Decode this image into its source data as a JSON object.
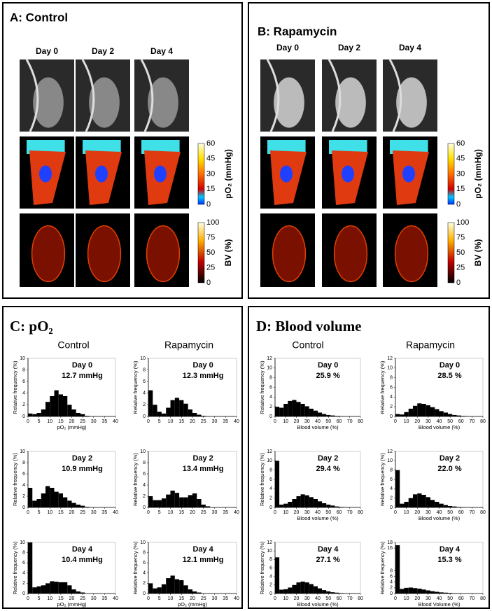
{
  "panels": [
    {
      "title": "A: Control",
      "days": [
        "Day 0",
        "Day 2",
        "Day 4"
      ],
      "colorbars": [
        {
          "label": "pO₂ (mmHg)",
          "ticks": [
            60,
            45,
            30,
            15,
            0
          ]
        },
        {
          "label": "BV (%)",
          "ticks": [
            100,
            75,
            50,
            25,
            0
          ]
        }
      ]
    },
    {
      "title": "B: Rapamycin",
      "days": [
        "Day 0",
        "Day 2",
        "Day 4"
      ],
      "colorbars": [
        {
          "label": "pO₂ (mmHg)",
          "ticks": [
            60,
            45,
            30,
            15,
            0
          ]
        },
        {
          "label": "BV (%)",
          "ticks": [
            100,
            75,
            50,
            25,
            0
          ]
        }
      ]
    },
    {
      "title": "C: pO₂",
      "columns": [
        "Control",
        "Rapamycin"
      ]
    },
    {
      "title": "D: Blood volume",
      "columns": [
        "Control",
        "Rapamycin"
      ]
    }
  ],
  "chart_data": [
    {
      "type": "histogram",
      "day": "Day 0",
      "mean": "12.7 mmHg",
      "ylabel": "Relative frequency (%)",
      "xlabel": "pO₂ (mmHg)",
      "color": "#000000",
      "bins": [
        0,
        2,
        4,
        6,
        8,
        10,
        12,
        14,
        16,
        18,
        20,
        22,
        24,
        26,
        28,
        30,
        32,
        34,
        36,
        38,
        40
      ],
      "values": [
        0.5,
        0.4,
        0.6,
        1.2,
        2.5,
        3.5,
        4.5,
        3.8,
        3.5,
        2,
        1.2,
        0.6,
        0.4,
        0.1,
        0,
        0,
        0,
        0,
        0,
        0
      ],
      "xlim": [
        0,
        40
      ],
      "xticks": [
        0,
        5,
        10,
        15,
        20,
        25,
        30,
        35,
        40
      ],
      "ylim": [
        0,
        10
      ],
      "yticks": [
        0,
        2,
        4,
        6,
        8,
        10
      ]
    },
    {
      "type": "histogram",
      "day": "Day 0",
      "mean": "12.3 mmHg",
      "ylabel": "Relative frequency (%)",
      "color": "#000000",
      "bins": [
        0,
        2,
        4,
        6,
        8,
        10,
        12,
        14,
        16,
        18,
        20,
        22,
        24,
        26,
        28,
        30,
        32,
        34,
        36,
        38,
        40
      ],
      "values": [
        4.5,
        2,
        0.8,
        0.5,
        1.5,
        2.8,
        3.2,
        2.8,
        2.2,
        1.2,
        0.6,
        0.3,
        0.1,
        0,
        0,
        0,
        0,
        0,
        0,
        0
      ],
      "xlim": [
        0,
        40
      ],
      "xticks": [
        0,
        5,
        10,
        15,
        20,
        25,
        30,
        35,
        40
      ],
      "ylim": [
        0,
        10
      ],
      "yticks": [
        0,
        2,
        4,
        6,
        8,
        10
      ]
    },
    {
      "type": "histogram",
      "day": "Day 2",
      "mean": "10.9 mmHg",
      "ylabel": "Relative frequency (%)",
      "color": "#000000",
      "bins": [
        0,
        2,
        4,
        6,
        8,
        10,
        12,
        14,
        16,
        18,
        20,
        22,
        24,
        26,
        28,
        30,
        32,
        34,
        36,
        38,
        40
      ],
      "values": [
        3.5,
        1.2,
        1.5,
        2.5,
        3.8,
        3.5,
        2.8,
        2.5,
        1.8,
        1.2,
        0.8,
        0.5,
        0.3,
        0.1,
        0,
        0,
        0,
        0,
        0,
        0
      ],
      "xlim": [
        0,
        40
      ],
      "xticks": [
        0,
        5,
        10,
        15,
        20,
        25,
        30,
        35,
        40
      ],
      "ylim": [
        0,
        10
      ],
      "yticks": [
        0,
        2,
        4,
        6,
        8,
        10
      ]
    },
    {
      "type": "histogram",
      "day": "Day 2",
      "mean": "13.4 mmHg",
      "ylabel": "Relative frequency (%)",
      "color": "#000000",
      "bins": [
        0,
        2,
        4,
        6,
        8,
        10,
        12,
        14,
        16,
        18,
        20,
        22,
        24,
        26,
        28,
        30,
        32,
        34,
        36,
        38,
        40
      ],
      "values": [
        2,
        1.3,
        1.3,
        1.6,
        2.3,
        3,
        2.6,
        1.8,
        1.8,
        2.2,
        2.5,
        1.5,
        0.5,
        0.2,
        0,
        0,
        0,
        0,
        0,
        0
      ],
      "xlim": [
        0,
        40
      ],
      "xticks": [
        0,
        5,
        10,
        15,
        20,
        25,
        30,
        35,
        40
      ],
      "ylim": [
        0,
        10
      ],
      "yticks": [
        0,
        2,
        4,
        6,
        8,
        10
      ]
    },
    {
      "type": "histogram",
      "day": "Day 4",
      "mean": "10.4 mmHg",
      "ylabel": "Relative frequency (%)",
      "xlabel": "pO₂ (mmHg)",
      "color": "#000000",
      "bins": [
        0,
        2,
        4,
        6,
        8,
        10,
        12,
        14,
        16,
        18,
        20,
        22,
        24,
        26,
        28,
        30,
        32,
        34,
        36,
        38,
        40
      ],
      "values": [
        10,
        1.2,
        1.4,
        1.6,
        2,
        2.4,
        2.3,
        2.2,
        2.2,
        1.6,
        0.8,
        0.4,
        0.2,
        0,
        0,
        0,
        0,
        0,
        0,
        0
      ],
      "xlim": [
        0,
        40
      ],
      "xticks": [
        0,
        5,
        10,
        15,
        20,
        25,
        30,
        35,
        40
      ],
      "ylim": [
        0,
        10
      ],
      "yticks": [
        0,
        2,
        4,
        6,
        8,
        10
      ]
    },
    {
      "type": "histogram",
      "day": "Day 4",
      "mean": "12.1 mmHg",
      "ylabel": "Relative frequency (%)",
      "xlabel": "pO₂ (mmHg)",
      "color": "#000000",
      "bins": [
        0,
        2,
        4,
        6,
        8,
        10,
        12,
        14,
        16,
        18,
        20,
        22,
        24,
        26,
        28,
        30,
        32,
        34,
        36,
        38,
        40
      ],
      "values": [
        2,
        1,
        1.2,
        1.8,
        3,
        3.5,
        2.8,
        2.6,
        1.6,
        0.8,
        0.4,
        0.2,
        0,
        0,
        0,
        0,
        0,
        0,
        0,
        0
      ],
      "xlim": [
        0,
        40
      ],
      "xticks": [
        0,
        5,
        10,
        15,
        20,
        25,
        30,
        35,
        40
      ],
      "ylim": [
        0,
        10
      ],
      "yticks": [
        0,
        2,
        4,
        6,
        8,
        10
      ]
    },
    {
      "type": "histogram",
      "day": "Day 0",
      "mean": "25.9 %",
      "ylabel": "Relative frequency (%)",
      "xlabel": "Blood volume (%)",
      "color": "#000000",
      "bins": [
        0,
        4,
        8,
        12,
        16,
        20,
        24,
        28,
        32,
        36,
        40,
        44,
        48,
        52,
        56,
        60,
        64,
        68,
        72,
        76,
        80
      ],
      "values": [
        2,
        1.8,
        2.6,
        3.2,
        3.4,
        3,
        2.6,
        2.1,
        1.6,
        1.2,
        0.8,
        0.5,
        0.3,
        0.2,
        0.1,
        0.05,
        0,
        0,
        0,
        0
      ],
      "xlim": [
        0,
        80
      ],
      "xticks": [
        0,
        10,
        20,
        30,
        40,
        50,
        60,
        70,
        80
      ],
      "ylim": [
        0,
        12
      ],
      "yticks": [
        0,
        2,
        4,
        6,
        8,
        10,
        12
      ]
    },
    {
      "type": "histogram",
      "day": "Day 0",
      "mean": "28.5 %",
      "ylabel": "Relative frequency (%)",
      "xlabel": "Blood volume (%)",
      "color": "#000000",
      "bins": [
        0,
        4,
        8,
        12,
        16,
        20,
        24,
        28,
        32,
        36,
        40,
        44,
        48,
        52,
        56,
        60,
        64,
        68,
        72,
        76,
        80
      ],
      "values": [
        0.5,
        0.4,
        0.9,
        1.6,
        2.2,
        2.7,
        2.6,
        2.3,
        1.9,
        1.5,
        1.1,
        0.8,
        0.5,
        0.3,
        0.2,
        0.1,
        0.05,
        0,
        0,
        0
      ],
      "xlim": [
        0,
        80
      ],
      "xticks": [
        0,
        10,
        20,
        30,
        40,
        50,
        60,
        70,
        80
      ],
      "ylim": [
        0,
        12
      ],
      "yticks": [
        0,
        2,
        4,
        6,
        8,
        10,
        12
      ]
    },
    {
      "type": "histogram",
      "day": "Day 2",
      "mean": "29.4 %",
      "ylabel": "Relative frequency (%)",
      "xlabel": "Blood volume (%)",
      "color": "#000000",
      "bins": [
        0,
        4,
        8,
        12,
        16,
        20,
        24,
        28,
        32,
        36,
        40,
        44,
        48,
        52,
        56,
        60,
        64,
        68,
        72,
        76,
        80
      ],
      "values": [
        10,
        0.6,
        0.8,
        1.2,
        1.8,
        2.4,
        2.8,
        2.6,
        2.2,
        1.8,
        1.3,
        0.9,
        0.6,
        0.4,
        0.2,
        0.1,
        0.05,
        0,
        0,
        0
      ],
      "xlim": [
        0,
        80
      ],
      "xticks": [
        0,
        10,
        20,
        30,
        40,
        50,
        60,
        70,
        80
      ],
      "ylim": [
        0,
        12
      ],
      "yticks": [
        0,
        2,
        4,
        6,
        8,
        10,
        12
      ]
    },
    {
      "type": "histogram",
      "day": "Day 2",
      "mean": "22.0 %",
      "ylabel": "Relative frequency (%)",
      "xlabel": "Blood volume (%)",
      "color": "#000000",
      "bins": [
        0,
        4,
        8,
        12,
        16,
        20,
        24,
        28,
        32,
        36,
        40,
        44,
        48,
        52,
        56,
        60,
        64,
        68,
        72,
        76,
        80
      ],
      "values": [
        8,
        0.8,
        1.2,
        2,
        2.8,
        3,
        2.7,
        2.2,
        1.6,
        1.2,
        0.8,
        0.5,
        0.3,
        0.2,
        0.1,
        0.05,
        0,
        0,
        0,
        0
      ],
      "xlim": [
        0,
        80
      ],
      "xticks": [
        0,
        10,
        20,
        30,
        40,
        50,
        60,
        70,
        80
      ],
      "ylim": [
        0,
        12
      ],
      "yticks": [
        0,
        2,
        4,
        6,
        8,
        10,
        12
      ]
    },
    {
      "type": "histogram",
      "day": "Day 4",
      "mean": "27.1 %",
      "ylabel": "Relative frequency (%)",
      "xlabel": "Blood volume (%)",
      "color": "#000000",
      "bins": [
        0,
        4,
        8,
        12,
        16,
        20,
        24,
        28,
        32,
        36,
        40,
        44,
        48,
        52,
        56,
        60,
        64,
        68,
        72,
        76,
        80
      ],
      "values": [
        8.5,
        0.9,
        1,
        1.4,
        2,
        2.6,
        2.8,
        2.6,
        2.2,
        1.7,
        1.2,
        0.8,
        0.5,
        0.3,
        0.2,
        0.1,
        0,
        0,
        0,
        0
      ],
      "xlim": [
        0,
        80
      ],
      "xticks": [
        0,
        10,
        20,
        30,
        40,
        50,
        60,
        70,
        80
      ],
      "ylim": [
        0,
        12
      ],
      "yticks": [
        0,
        2,
        4,
        6,
        8,
        10,
        12
      ]
    },
    {
      "type": "histogram",
      "day": "Day 4",
      "mean": "15.3 %",
      "ylabel": "Relative frequency (%)",
      "xlabel": "Blood Volume (%)",
      "color": "#000000",
      "bins": [
        0,
        4,
        8,
        12,
        16,
        20,
        24,
        28,
        32,
        36,
        40,
        44,
        48,
        52,
        56,
        60,
        64,
        68,
        72,
        76,
        80
      ],
      "values": [
        17,
        1.6,
        2,
        2.1,
        1.9,
        1.7,
        1.4,
        1.1,
        0.8,
        0.6,
        0.4,
        0.3,
        0.2,
        0.1,
        0.05,
        0,
        0,
        0,
        0,
        0
      ],
      "xlim": [
        0,
        80
      ],
      "xticks": [
        0,
        10,
        20,
        30,
        40,
        50,
        60,
        70,
        80
      ],
      "ylim": [
        0,
        18
      ],
      "yticks": [
        0,
        2,
        4,
        6,
        8,
        16,
        18
      ]
    }
  ]
}
